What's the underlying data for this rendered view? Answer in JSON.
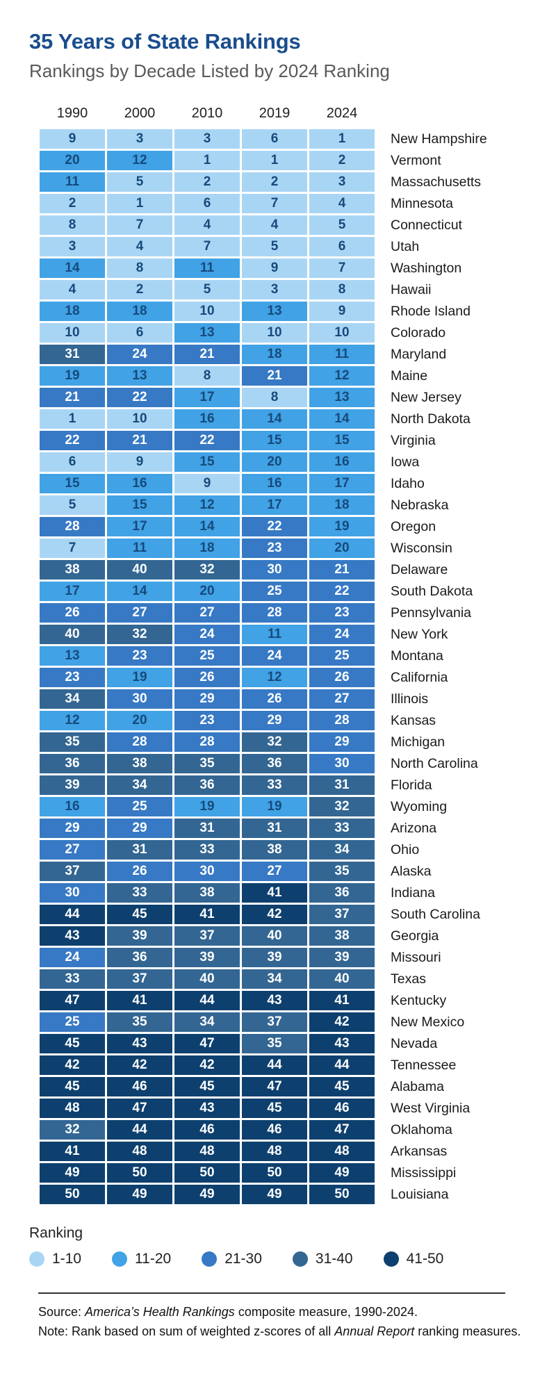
{
  "title": "35 Years of State Rankings",
  "subtitle": "Rankings by Decade Listed by 2024 Ranking",
  "colors": {
    "title": "#1a4d8d",
    "subtitle_gray": "#595959",
    "dark_number_text": "#164a7c",
    "light_number_text": "#ffffff"
  },
  "legend": {
    "label": "Ranking",
    "items": [
      {
        "label": "1-10",
        "color": "#a9d5f4"
      },
      {
        "label": "11-20",
        "color": "#41a2e5"
      },
      {
        "label": "21-30",
        "color": "#3779c4"
      },
      {
        "label": "31-40",
        "color": "#336692"
      },
      {
        "label": "41-50",
        "color": "#0d406e"
      }
    ]
  },
  "footer": {
    "source_prefix": "Source: ",
    "source_italic": "America’s Health Rankings",
    "source_suffix": " composite measure, 1990-2024.",
    "note_prefix": "Note: Rank based on sum of weighted z-scores of all ",
    "note_italic": "Annual Report",
    "note_suffix": " ranking measures."
  },
  "chart_data": {
    "type": "heatmap",
    "title": "35 Years of State Rankings",
    "subtitle": "Rankings by Decade Listed by 2024 Ranking",
    "columns": [
      "1990",
      "2000",
      "2010",
      "2019",
      "2024"
    ],
    "buckets": [
      {
        "range": "1-10",
        "min": 1,
        "max": 10,
        "color": "#a9d5f4",
        "text": "#164a7c"
      },
      {
        "range": "11-20",
        "min": 11,
        "max": 20,
        "color": "#41a2e5",
        "text": "#164a7c"
      },
      {
        "range": "21-30",
        "min": 21,
        "max": 30,
        "color": "#3779c4",
        "text": "#ffffff"
      },
      {
        "range": "31-40",
        "min": 31,
        "max": 40,
        "color": "#336692",
        "text": "#ffffff"
      },
      {
        "range": "41-50",
        "min": 41,
        "max": 50,
        "color": "#0d406e",
        "text": "#ffffff"
      }
    ],
    "rows": [
      {
        "state": "New Hampshire",
        "values": [
          9,
          3,
          3,
          6,
          1
        ]
      },
      {
        "state": "Vermont",
        "values": [
          20,
          12,
          1,
          1,
          2
        ]
      },
      {
        "state": "Massachusetts",
        "values": [
          11,
          5,
          2,
          2,
          3
        ]
      },
      {
        "state": "Minnesota",
        "values": [
          2,
          1,
          6,
          7,
          4
        ]
      },
      {
        "state": "Connecticut",
        "values": [
          8,
          7,
          4,
          4,
          5
        ]
      },
      {
        "state": "Utah",
        "values": [
          3,
          4,
          7,
          5,
          6
        ]
      },
      {
        "state": "Washington",
        "values": [
          14,
          8,
          11,
          9,
          7
        ]
      },
      {
        "state": "Hawaii",
        "values": [
          4,
          2,
          5,
          3,
          8
        ]
      },
      {
        "state": "Rhode Island",
        "values": [
          18,
          18,
          10,
          13,
          9
        ]
      },
      {
        "state": "Colorado",
        "values": [
          10,
          6,
          13,
          10,
          10
        ]
      },
      {
        "state": "Maryland",
        "values": [
          31,
          24,
          21,
          18,
          11
        ]
      },
      {
        "state": "Maine",
        "values": [
          19,
          13,
          8,
          21,
          12
        ]
      },
      {
        "state": "New Jersey",
        "values": [
          21,
          22,
          17,
          8,
          13
        ]
      },
      {
        "state": "North Dakota",
        "values": [
          1,
          10,
          16,
          14,
          14
        ]
      },
      {
        "state": "Virginia",
        "values": [
          22,
          21,
          22,
          15,
          15
        ]
      },
      {
        "state": "Iowa",
        "values": [
          6,
          9,
          15,
          20,
          16
        ]
      },
      {
        "state": "Idaho",
        "values": [
          15,
          16,
          9,
          16,
          17
        ]
      },
      {
        "state": "Nebraska",
        "values": [
          5,
          15,
          12,
          17,
          18
        ]
      },
      {
        "state": "Oregon",
        "values": [
          28,
          17,
          14,
          22,
          19
        ]
      },
      {
        "state": "Wisconsin",
        "values": [
          7,
          11,
          18,
          23,
          20
        ]
      },
      {
        "state": "Delaware",
        "values": [
          38,
          40,
          32,
          30,
          21
        ]
      },
      {
        "state": "South Dakota",
        "values": [
          17,
          14,
          20,
          25,
          22
        ]
      },
      {
        "state": "Pennsylvania",
        "values": [
          26,
          27,
          27,
          28,
          23
        ]
      },
      {
        "state": "New York",
        "values": [
          40,
          32,
          24,
          11,
          24
        ]
      },
      {
        "state": "Montana",
        "values": [
          13,
          23,
          25,
          24,
          25
        ]
      },
      {
        "state": "California",
        "values": [
          23,
          19,
          26,
          12,
          26
        ]
      },
      {
        "state": "Illinois",
        "values": [
          34,
          30,
          29,
          26,
          27
        ]
      },
      {
        "state": "Kansas",
        "values": [
          12,
          20,
          23,
          29,
          28
        ]
      },
      {
        "state": "Michigan",
        "values": [
          35,
          28,
          28,
          32,
          29
        ]
      },
      {
        "state": "North Carolina",
        "values": [
          36,
          38,
          35,
          36,
          30
        ]
      },
      {
        "state": "Florida",
        "values": [
          39,
          34,
          36,
          33,
          31
        ]
      },
      {
        "state": "Wyoming",
        "values": [
          16,
          25,
          19,
          19,
          32
        ]
      },
      {
        "state": "Arizona",
        "values": [
          29,
          29,
          31,
          31,
          33
        ]
      },
      {
        "state": "Ohio",
        "values": [
          27,
          31,
          33,
          38,
          34
        ]
      },
      {
        "state": "Alaska",
        "values": [
          37,
          26,
          30,
          27,
          35
        ]
      },
      {
        "state": "Indiana",
        "values": [
          30,
          33,
          38,
          41,
          36
        ]
      },
      {
        "state": "South Carolina",
        "values": [
          44,
          45,
          41,
          42,
          37
        ]
      },
      {
        "state": "Georgia",
        "values": [
          43,
          39,
          37,
          40,
          38
        ]
      },
      {
        "state": "Missouri",
        "values": [
          24,
          36,
          39,
          39,
          39
        ]
      },
      {
        "state": "Texas",
        "values": [
          33,
          37,
          40,
          34,
          40
        ]
      },
      {
        "state": "Kentucky",
        "values": [
          47,
          41,
          44,
          43,
          41
        ]
      },
      {
        "state": "New Mexico",
        "values": [
          25,
          35,
          34,
          37,
          42
        ]
      },
      {
        "state": "Nevada",
        "values": [
          45,
          43,
          47,
          35,
          43
        ]
      },
      {
        "state": "Tennessee",
        "values": [
          42,
          42,
          42,
          44,
          44
        ]
      },
      {
        "state": "Alabama",
        "values": [
          45,
          46,
          45,
          47,
          45
        ]
      },
      {
        "state": "West Virginia",
        "values": [
          48,
          47,
          43,
          45,
          46
        ]
      },
      {
        "state": "Oklahoma",
        "values": [
          32,
          44,
          46,
          46,
          47
        ]
      },
      {
        "state": "Arkansas",
        "values": [
          41,
          48,
          48,
          48,
          48
        ]
      },
      {
        "state": "Mississippi",
        "values": [
          49,
          50,
          50,
          50,
          49
        ]
      },
      {
        "state": "Louisiana",
        "values": [
          50,
          49,
          49,
          49,
          50
        ]
      }
    ]
  }
}
